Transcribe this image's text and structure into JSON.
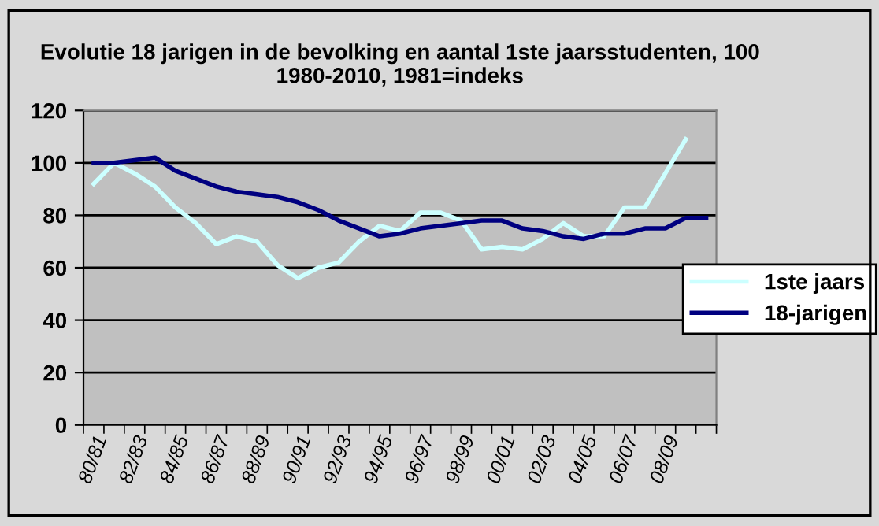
{
  "chart_data": {
    "type": "line",
    "title": "Evolutie 18 jarigen in de bevolking en aantal 1ste jaarsstudenten, 100 1980-2010, 1981=indeks",
    "categories": [
      "80/81",
      null,
      "82/83",
      null,
      "84/85",
      null,
      "86/87",
      null,
      "88/89",
      null,
      "90/91",
      null,
      "92/93",
      null,
      "94/95",
      null,
      "96/97",
      null,
      "98/99",
      null,
      "00/01",
      null,
      "02/03",
      null,
      "04/05",
      null,
      "06/07",
      null,
      "08/09",
      null,
      null
    ],
    "series": [
      {
        "name": "1ste jaars",
        "color": "#ccffff",
        "values": [
          92,
          100,
          96,
          91,
          83,
          77,
          69,
          72,
          70,
          61,
          56,
          60,
          62,
          70,
          76,
          74,
          81,
          81,
          78,
          67,
          68,
          67,
          71,
          77,
          72,
          72,
          83,
          83,
          96,
          109,
          null
        ]
      },
      {
        "name": "18-jarigen",
        "color": "#000080",
        "values": [
          100,
          100,
          101,
          102,
          97,
          94,
          91,
          89,
          88,
          87,
          85,
          82,
          78,
          75,
          72,
          73,
          75,
          76,
          77,
          78,
          78,
          75,
          74,
          72,
          71,
          73,
          73,
          75,
          75,
          79,
          79
        ]
      }
    ],
    "ylim": [
      0,
      120
    ],
    "yticks": [
      0,
      20,
      40,
      60,
      80,
      100,
      120
    ],
    "grid": "y",
    "legend": "right",
    "marker": "none",
    "line_style": "solid"
  }
}
